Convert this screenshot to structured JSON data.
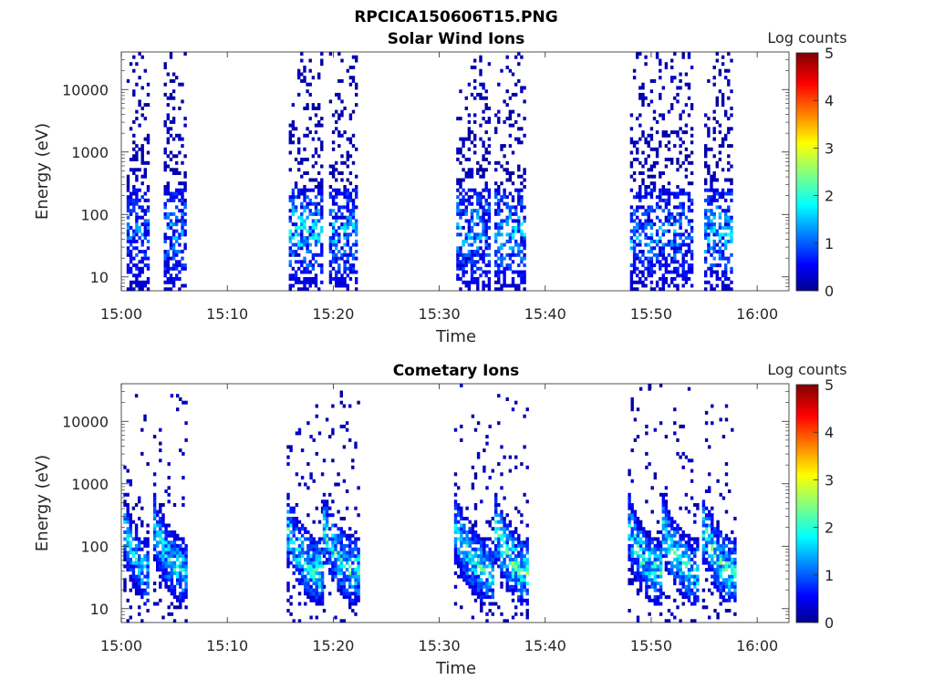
{
  "figure_title": "RPCICA150606T15.PNG",
  "chart_data": [
    {
      "type": "heatmap",
      "title": "Solar Wind Ions",
      "xlabel": "Time",
      "ylabel": "Energy (eV)",
      "x_ticks": [
        "15:00",
        "15:10",
        "15:20",
        "15:30",
        "15:40",
        "15:50",
        "16:00"
      ],
      "xlim_minutes": [
        0,
        63
      ],
      "y_scale": "log",
      "y_ticks": [
        10,
        100,
        1000,
        10000
      ],
      "ylim": [
        6,
        40000
      ],
      "colorbar_label": "Log counts",
      "colorbar_ticks": [
        0,
        1,
        2,
        3,
        4,
        5
      ],
      "colorbar_range": [
        0,
        5
      ],
      "colormap": "jet",
      "bursts": [
        {
          "start_min": 0.5,
          "end_min": 2.6,
          "max_log_counts": 1.3
        },
        {
          "start_min": 4.0,
          "end_min": 6.0,
          "max_log_counts": 1.6
        },
        {
          "start_min": 15.8,
          "end_min": 18.8,
          "max_log_counts": 2.0
        },
        {
          "start_min": 19.6,
          "end_min": 22.2,
          "max_log_counts": 1.8
        },
        {
          "start_min": 31.6,
          "end_min": 34.8,
          "max_log_counts": 1.7
        },
        {
          "start_min": 35.2,
          "end_min": 38.0,
          "max_log_counts": 1.8
        },
        {
          "start_min": 48.0,
          "end_min": 50.8,
          "max_log_counts": 1.6
        },
        {
          "start_min": 51.0,
          "end_min": 53.8,
          "max_log_counts": 1.5
        },
        {
          "start_min": 55.0,
          "end_min": 57.6,
          "max_log_counts": 1.8
        }
      ]
    },
    {
      "type": "heatmap",
      "title": "Cometary Ions",
      "xlabel": "Time",
      "ylabel": "Energy (eV)",
      "x_ticks": [
        "15:00",
        "15:10",
        "15:20",
        "15:30",
        "15:40",
        "15:50",
        "16:00"
      ],
      "xlim_minutes": [
        0,
        63
      ],
      "y_scale": "log",
      "y_ticks": [
        10,
        100,
        1000,
        10000
      ],
      "ylim": [
        6,
        40000
      ],
      "colorbar_label": "Log counts",
      "colorbar_ticks": [
        0,
        1,
        2,
        3,
        4,
        5
      ],
      "colorbar_range": [
        0,
        5
      ],
      "colormap": "jet",
      "bursts": [
        {
          "start_min": 0.2,
          "end_min": 2.6,
          "max_log_counts": 2.3
        },
        {
          "start_min": 3.0,
          "end_min": 6.2,
          "max_log_counts": 2.5
        },
        {
          "start_min": 15.6,
          "end_min": 19.0,
          "max_log_counts": 2.6
        },
        {
          "start_min": 19.0,
          "end_min": 22.4,
          "max_log_counts": 2.7
        },
        {
          "start_min": 31.4,
          "end_min": 35.0,
          "max_log_counts": 2.6
        },
        {
          "start_min": 35.2,
          "end_min": 38.4,
          "max_log_counts": 2.9
        },
        {
          "start_min": 47.8,
          "end_min": 50.8,
          "max_log_counts": 2.7
        },
        {
          "start_min": 51.0,
          "end_min": 54.4,
          "max_log_counts": 2.6
        },
        {
          "start_min": 54.8,
          "end_min": 57.8,
          "max_log_counts": 2.8
        }
      ]
    }
  ]
}
